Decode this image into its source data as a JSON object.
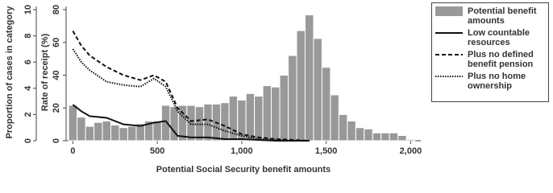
{
  "chart_data": {
    "type": "histogram",
    "xlabel": "Potential Social Security benefit amounts",
    "ylabel": "Proportion of cases in category",
    "y2label": "Rate of receipt (%)",
    "xlim": [
      -40,
      2060
    ],
    "ylim": [
      0,
      10
    ],
    "y2lim": [
      0,
      80
    ],
    "xticks": [
      0,
      500,
      {
        "value": 1000,
        "label": "1,000"
      },
      {
        "value": 1500,
        "label": "1,500"
      },
      {
        "value": 2000,
        "label": "2,000"
      }
    ],
    "yticks": [
      0,
      2,
      4,
      6,
      8,
      10
    ],
    "y2ticks": [
      0,
      20,
      40,
      60,
      80
    ],
    "bins": [
      -25,
      25,
      75,
      125,
      175,
      225,
      275,
      325,
      375,
      425,
      475,
      525,
      575,
      625,
      675,
      725,
      775,
      825,
      875,
      925,
      975,
      1025,
      1075,
      1125,
      1175,
      1225,
      1275,
      1325,
      1375,
      1425,
      1475,
      1525,
      1575,
      1625,
      1675,
      1725,
      1775,
      1825,
      1875,
      1925,
      1975,
      2025
    ],
    "series": [
      {
        "name": "Potential benefit amounts",
        "type": "histogram",
        "color": "#999999",
        "values": [
          2.7,
          1.8,
          1.1,
          1.4,
          1.5,
          1.2,
          1.0,
          1.1,
          1.3,
          1.5,
          1.5,
          2.7,
          2.6,
          2.7,
          2.7,
          2.6,
          2.8,
          2.8,
          2.9,
          3.4,
          3.1,
          3.6,
          3.4,
          4.2,
          4.1,
          5.0,
          6.5,
          8.4,
          9.6,
          7.8,
          5.6,
          3.5,
          2.0,
          1.5,
          1.0,
          0.9,
          0.6,
          0.6,
          0.6,
          0.4,
          0.1
        ]
      },
      {
        "name": "Low countable resources",
        "type": "line",
        "axis": "y2",
        "color": "#111111",
        "dash": "solid",
        "x": [
          0,
          50,
          100,
          200,
          300,
          400,
          480,
          550,
          620,
          700,
          800,
          900,
          1000,
          1100,
          1200,
          1300,
          1400
        ],
        "values": [
          22,
          18,
          15,
          14,
          10,
          9,
          11,
          12,
          3,
          2,
          2,
          1,
          1,
          0.5,
          0,
          0,
          0
        ]
      },
      {
        "name": "Plus no defined benefit pension",
        "type": "line",
        "axis": "y2",
        "color": "#111111",
        "dash": "dashed",
        "x": [
          0,
          50,
          100,
          200,
          300,
          400,
          480,
          550,
          620,
          700,
          800,
          900,
          1000,
          1100,
          1200,
          1300,
          1400
        ],
        "values": [
          67,
          58,
          52,
          45,
          40,
          37,
          40,
          36,
          20,
          12,
          13,
          9,
          4,
          2,
          1,
          0.5,
          0
        ]
      },
      {
        "name": "Plus no home ownership",
        "type": "line",
        "axis": "y2",
        "color": "#111111",
        "dash": "dotted",
        "x": [
          0,
          50,
          100,
          200,
          300,
          400,
          480,
          550,
          620,
          700,
          800,
          900,
          1000,
          1100,
          1200,
          1300,
          1400
        ],
        "values": [
          56,
          48,
          43,
          36,
          34,
          33,
          38,
          33,
          18,
          10,
          10,
          6,
          3,
          1,
          0.5,
          0,
          0
        ]
      }
    ]
  }
}
